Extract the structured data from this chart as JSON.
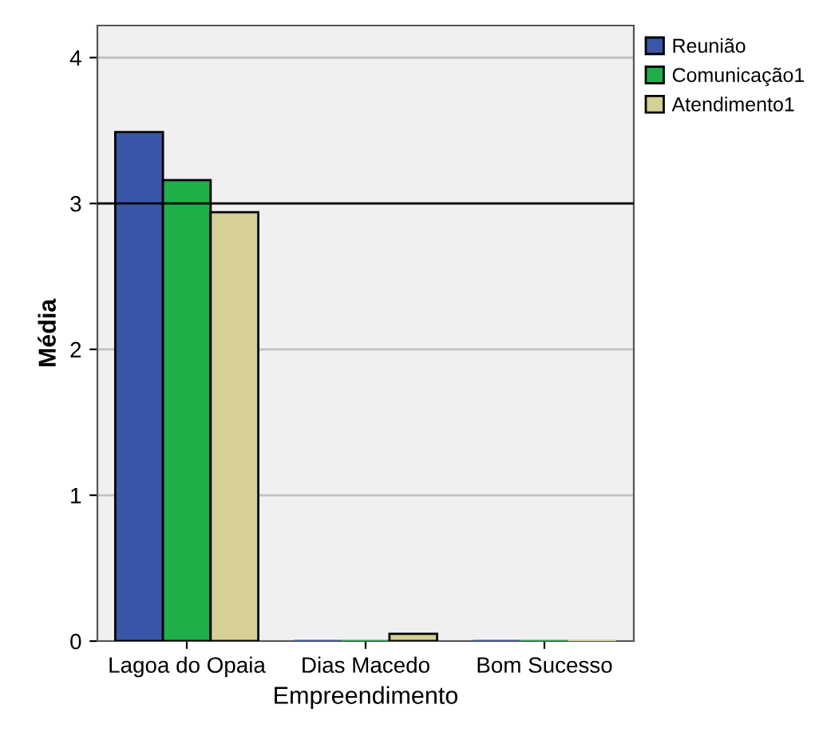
{
  "chart_data": {
    "type": "bar",
    "xlabel": "Empreendimento",
    "ylabel": "Média",
    "categories": [
      "Lagoa do Opaia",
      "Dias Macedo",
      "Bom Sucesso"
    ],
    "series": [
      {
        "name": "Reunião",
        "color": "#3a56a8",
        "values": [
          3.49,
          0,
          0
        ]
      },
      {
        "name": "Comunicação1",
        "color": "#1fae48",
        "values": [
          3.16,
          0,
          0
        ]
      },
      {
        "name": "Atendimento1",
        "color": "#d6cf96",
        "values": [
          2.94,
          0.05,
          0
        ]
      }
    ],
    "ylim": [
      0,
      4.22
    ],
    "yticks": [
      0,
      1,
      2,
      3,
      4
    ],
    "grid": "y",
    "legend": "top right",
    "ref_lines": [
      {
        "axis": "y",
        "value": 3,
        "color": "#000000"
      }
    ]
  }
}
